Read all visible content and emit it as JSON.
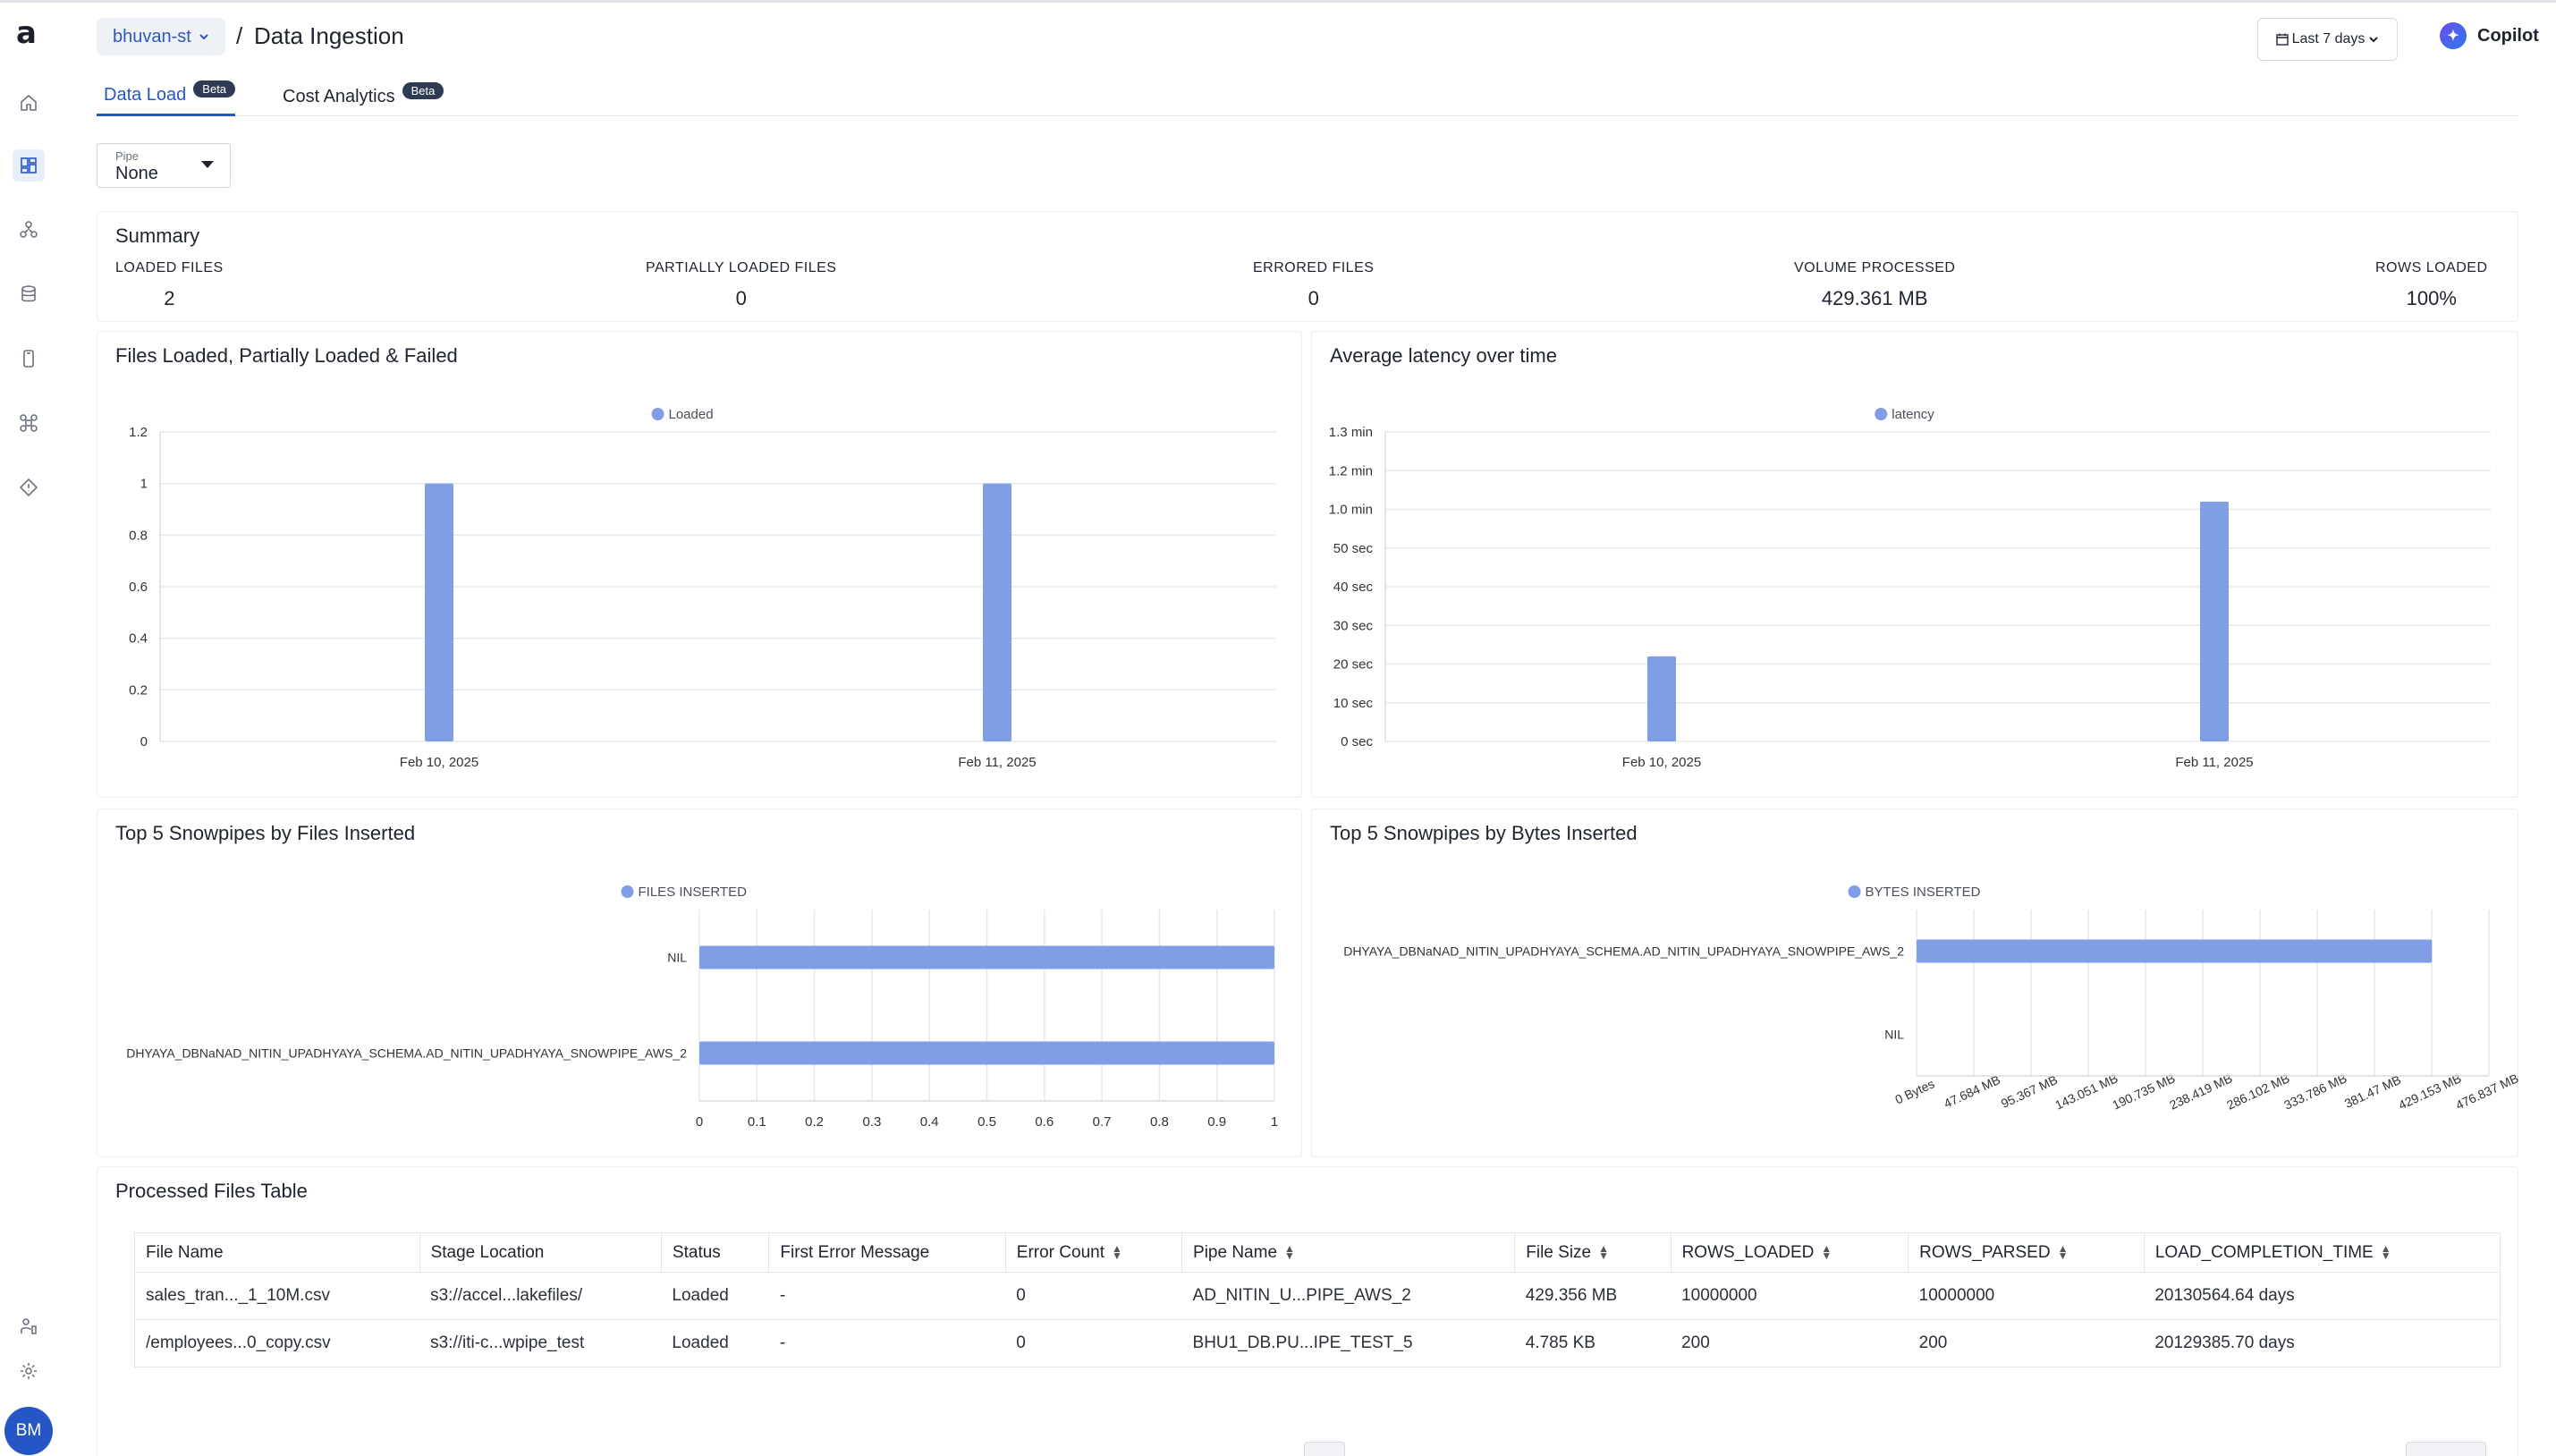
{
  "app": {
    "logo": "a",
    "avatar_initials": "BM"
  },
  "sidebar": {
    "icons": [
      "home-icon",
      "dashboard-icon",
      "connections-icon",
      "database-icon",
      "mobile-icon",
      "command-icon",
      "diamond-warning-icon",
      "user-structure-icon",
      "gear-icon"
    ]
  },
  "header": {
    "workspace": "bhuvan-st",
    "separator": "/",
    "title": "Data Ingestion",
    "date_range": "Last 7 days",
    "copilot": "Copilot"
  },
  "tabs": [
    {
      "label": "Data Load",
      "badge": "Beta"
    },
    {
      "label": "Cost Analytics",
      "badge": "Beta"
    }
  ],
  "pipe_filter": {
    "label": "Pipe",
    "value": "None"
  },
  "summary": {
    "title": "Summary",
    "items": [
      {
        "label": "LOADED FILES",
        "value": "2"
      },
      {
        "label": "PARTIALLY LOADED FILES",
        "value": "0"
      },
      {
        "label": "ERRORED FILES",
        "value": "0"
      },
      {
        "label": "VOLUME PROCESSED",
        "value": "429.361 MB"
      },
      {
        "label": "ROWS LOADED",
        "value": "100%"
      }
    ]
  },
  "accent_color": "#2457c5",
  "bar_color": "#7f9ee6",
  "chart_data": [
    {
      "type": "bar",
      "title": "Files Loaded, Partially Loaded & Failed",
      "categories": [
        "Feb 10, 2025",
        "Feb 11, 2025"
      ],
      "series": [
        {
          "name": "Loaded",
          "values": [
            1,
            1
          ]
        }
      ],
      "yticks": [
        "0",
        "0.2",
        "0.4",
        "0.6",
        "0.8",
        "1",
        "1.2"
      ],
      "ylim": [
        0,
        1.2
      ],
      "legend": "top-center",
      "grid": true
    },
    {
      "type": "bar",
      "title": "Average latency over time",
      "categories": [
        "Feb 10, 2025",
        "Feb 11, 2025"
      ],
      "series": [
        {
          "name": "latency",
          "values": [
            22,
            62
          ]
        }
      ],
      "yticks": [
        "0 sec",
        "10 sec",
        "20 sec",
        "30 sec",
        "40 sec",
        "50 sec",
        "1.0 min",
        "1.2 min",
        "1.3 min"
      ],
      "yunit": "seconds",
      "ylim": [
        0,
        80
      ],
      "legend": "top-center",
      "grid": true
    },
    {
      "type": "bar",
      "orientation": "horizontal",
      "title": "Top 5 Snowpipes by Files Inserted",
      "categories": [
        "NIL",
        "DHYAYA_DBNaNAD_NITIN_UPADHYAYA_SCHEMA.AD_NITIN_UPADHYAYA_SNOWPIPE_AWS_2"
      ],
      "series": [
        {
          "name": "FILES INSERTED",
          "values": [
            1,
            1
          ]
        }
      ],
      "xticks": [
        "0",
        "0.1",
        "0.2",
        "0.3",
        "0.4",
        "0.5",
        "0.6",
        "0.7",
        "0.8",
        "0.9",
        "1"
      ],
      "xlim": [
        0,
        1
      ],
      "legend": "top-center",
      "grid": true
    },
    {
      "type": "bar",
      "orientation": "horizontal",
      "title": "Top 5 Snowpipes by Bytes Inserted",
      "categories": [
        "DHYAYA_DBNaNAD_NITIN_UPADHYAYA_SCHEMA.AD_NITIN_UPADHYAYA_SNOWPIPE_AWS_2",
        "NIL"
      ],
      "series": [
        {
          "name": "BYTES INSERTED",
          "values": [
            429.361,
            0
          ]
        }
      ],
      "xunit": "MB",
      "xticks": [
        "0 Bytes",
        "47.684 MB",
        "95.367 MB",
        "143.051 MB",
        "190.735 MB",
        "238.419 MB",
        "286.102 MB",
        "333.786 MB",
        "381.47 MB",
        "429.153 MB",
        "476.837 MB"
      ],
      "xlim": [
        0,
        476.837
      ],
      "legend": "top-center",
      "grid": true
    }
  ],
  "table": {
    "title": "Processed Files Table",
    "columns": [
      "File Name",
      "Stage Location",
      "Status",
      "First Error Message",
      "Error Count",
      "Pipe Name",
      "File Size",
      "ROWS_LOADED",
      "ROWS_PARSED",
      "LOAD_COMPLETION_TIME"
    ],
    "sortable": [
      false,
      false,
      false,
      false,
      true,
      true,
      true,
      true,
      true,
      true
    ],
    "rows": [
      [
        "sales_tran..._1_10M.csv",
        "s3://accel...lakefiles/",
        "Loaded",
        "-",
        "0",
        "AD_NITIN_U...PIPE_AWS_2",
        "429.356 MB",
        "10000000",
        "10000000",
        "20130564.64 days"
      ],
      [
        "/employees...0_copy.csv",
        "s3://iti-c...wpipe_test",
        "Loaded",
        "-",
        "0",
        "BHU1_DB.PU...IPE_TEST_5",
        "4.785 KB",
        "200",
        "200",
        "20129385.70 days"
      ]
    ]
  }
}
